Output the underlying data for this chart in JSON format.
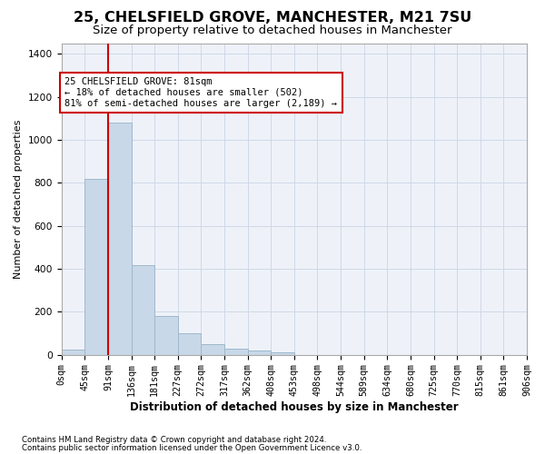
{
  "title": "25, CHELSFIELD GROVE, MANCHESTER, M21 7SU",
  "subtitle": "Size of property relative to detached houses in Manchester",
  "xlabel": "Distribution of detached houses by size in Manchester",
  "ylabel": "Number of detached properties",
  "footnote1": "Contains HM Land Registry data © Crown copyright and database right 2024.",
  "footnote2": "Contains public sector information licensed under the Open Government Licence v3.0.",
  "bin_labels": [
    "0sqm",
    "45sqm",
    "91sqm",
    "136sqm",
    "181sqm",
    "227sqm",
    "272sqm",
    "317sqm",
    "362sqm",
    "408sqm",
    "453sqm",
    "498sqm",
    "544sqm",
    "589sqm",
    "634sqm",
    "680sqm",
    "725sqm",
    "770sqm",
    "815sqm",
    "861sqm",
    "906sqm"
  ],
  "bar_values": [
    25,
    820,
    1080,
    415,
    180,
    100,
    50,
    30,
    18,
    10,
    0,
    0,
    0,
    0,
    0,
    0,
    0,
    0,
    0,
    0
  ],
  "bar_color": "#c8d8e8",
  "bar_edge_color": "#a0b8cc",
  "vline_x": 2.0,
  "vline_color": "#cc0000",
  "annotation_text": "25 CHELSFIELD GROVE: 81sqm\n← 18% of detached houses are smaller (502)\n81% of semi-detached houses are larger (2,189) →",
  "annotation_box_color": "#ffffff",
  "annotation_box_edge": "#cc0000",
  "ylim": [
    0,
    1450
  ],
  "yticks": [
    0,
    200,
    400,
    600,
    800,
    1000,
    1200,
    1400
  ],
  "grid_color": "#d0d8e8",
  "bg_color": "#eef2f8",
  "title_fontsize": 11.5,
  "subtitle_fontsize": 9.5,
  "axis_fontsize": 8.5,
  "ylabel_fontsize": 8,
  "tick_fontsize": 7.2
}
